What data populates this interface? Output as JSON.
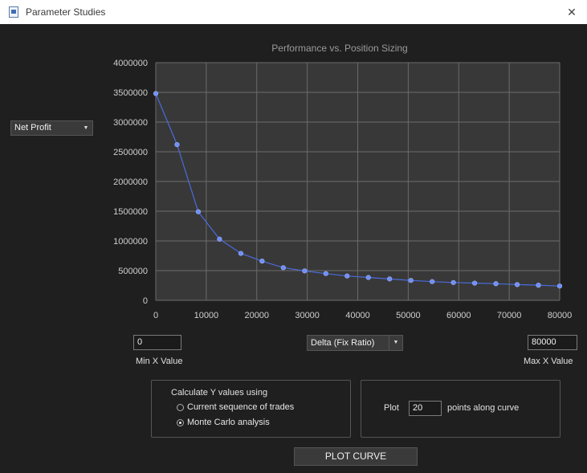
{
  "window": {
    "title": "Parameter Studies",
    "close_glyph": "✕"
  },
  "metric_select": {
    "value": "Net Profit"
  },
  "x_axis_select": {
    "value": "Delta (Fix Ratio)"
  },
  "min_x": {
    "value": "0",
    "caption": "Min X Value"
  },
  "max_x": {
    "value": "80000",
    "caption": "Max X Value"
  },
  "y_method": {
    "label": "Calculate Y values using",
    "options": [
      {
        "label": "Current sequence of trades",
        "selected": false
      },
      {
        "label": "Monte Carlo analysis",
        "selected": true
      }
    ]
  },
  "plot_points": {
    "prefix": "Plot",
    "value": "20",
    "suffix": "points along curve"
  },
  "plot_button": {
    "label": "PLOT CURVE"
  },
  "colors": {
    "line": "#4a6bdc",
    "marker": "#6f8ff5",
    "plot_bg": "#383838",
    "grid": "#6b6b6b"
  },
  "chart_data": {
    "type": "line",
    "title": "Performance vs. Position Sizing",
    "xlim": [
      0,
      80000
    ],
    "ylim": [
      0,
      4000000
    ],
    "x_ticks": [
      "0",
      "10000",
      "20000",
      "30000",
      "40000",
      "50000",
      "60000",
      "70000",
      "80000"
    ],
    "y_ticks": [
      "0",
      "500000",
      "1000000",
      "1500000",
      "2000000",
      "2500000",
      "3000000",
      "3500000",
      "4000000"
    ],
    "grid": true,
    "series": [
      {
        "x": [
          0,
          4211,
          8421,
          12632,
          16842,
          21053,
          25263,
          29474,
          33684,
          37895,
          42105,
          46316,
          50526,
          54737,
          58947,
          63158,
          67368,
          71579,
          75789,
          80000
        ],
        "values": [
          3480000,
          2620000,
          1490000,
          1030000,
          790000,
          660000,
          550000,
          495000,
          450000,
          410000,
          385000,
          360000,
          335000,
          315000,
          300000,
          290000,
          280000,
          265000,
          255000,
          240000
        ]
      }
    ]
  }
}
